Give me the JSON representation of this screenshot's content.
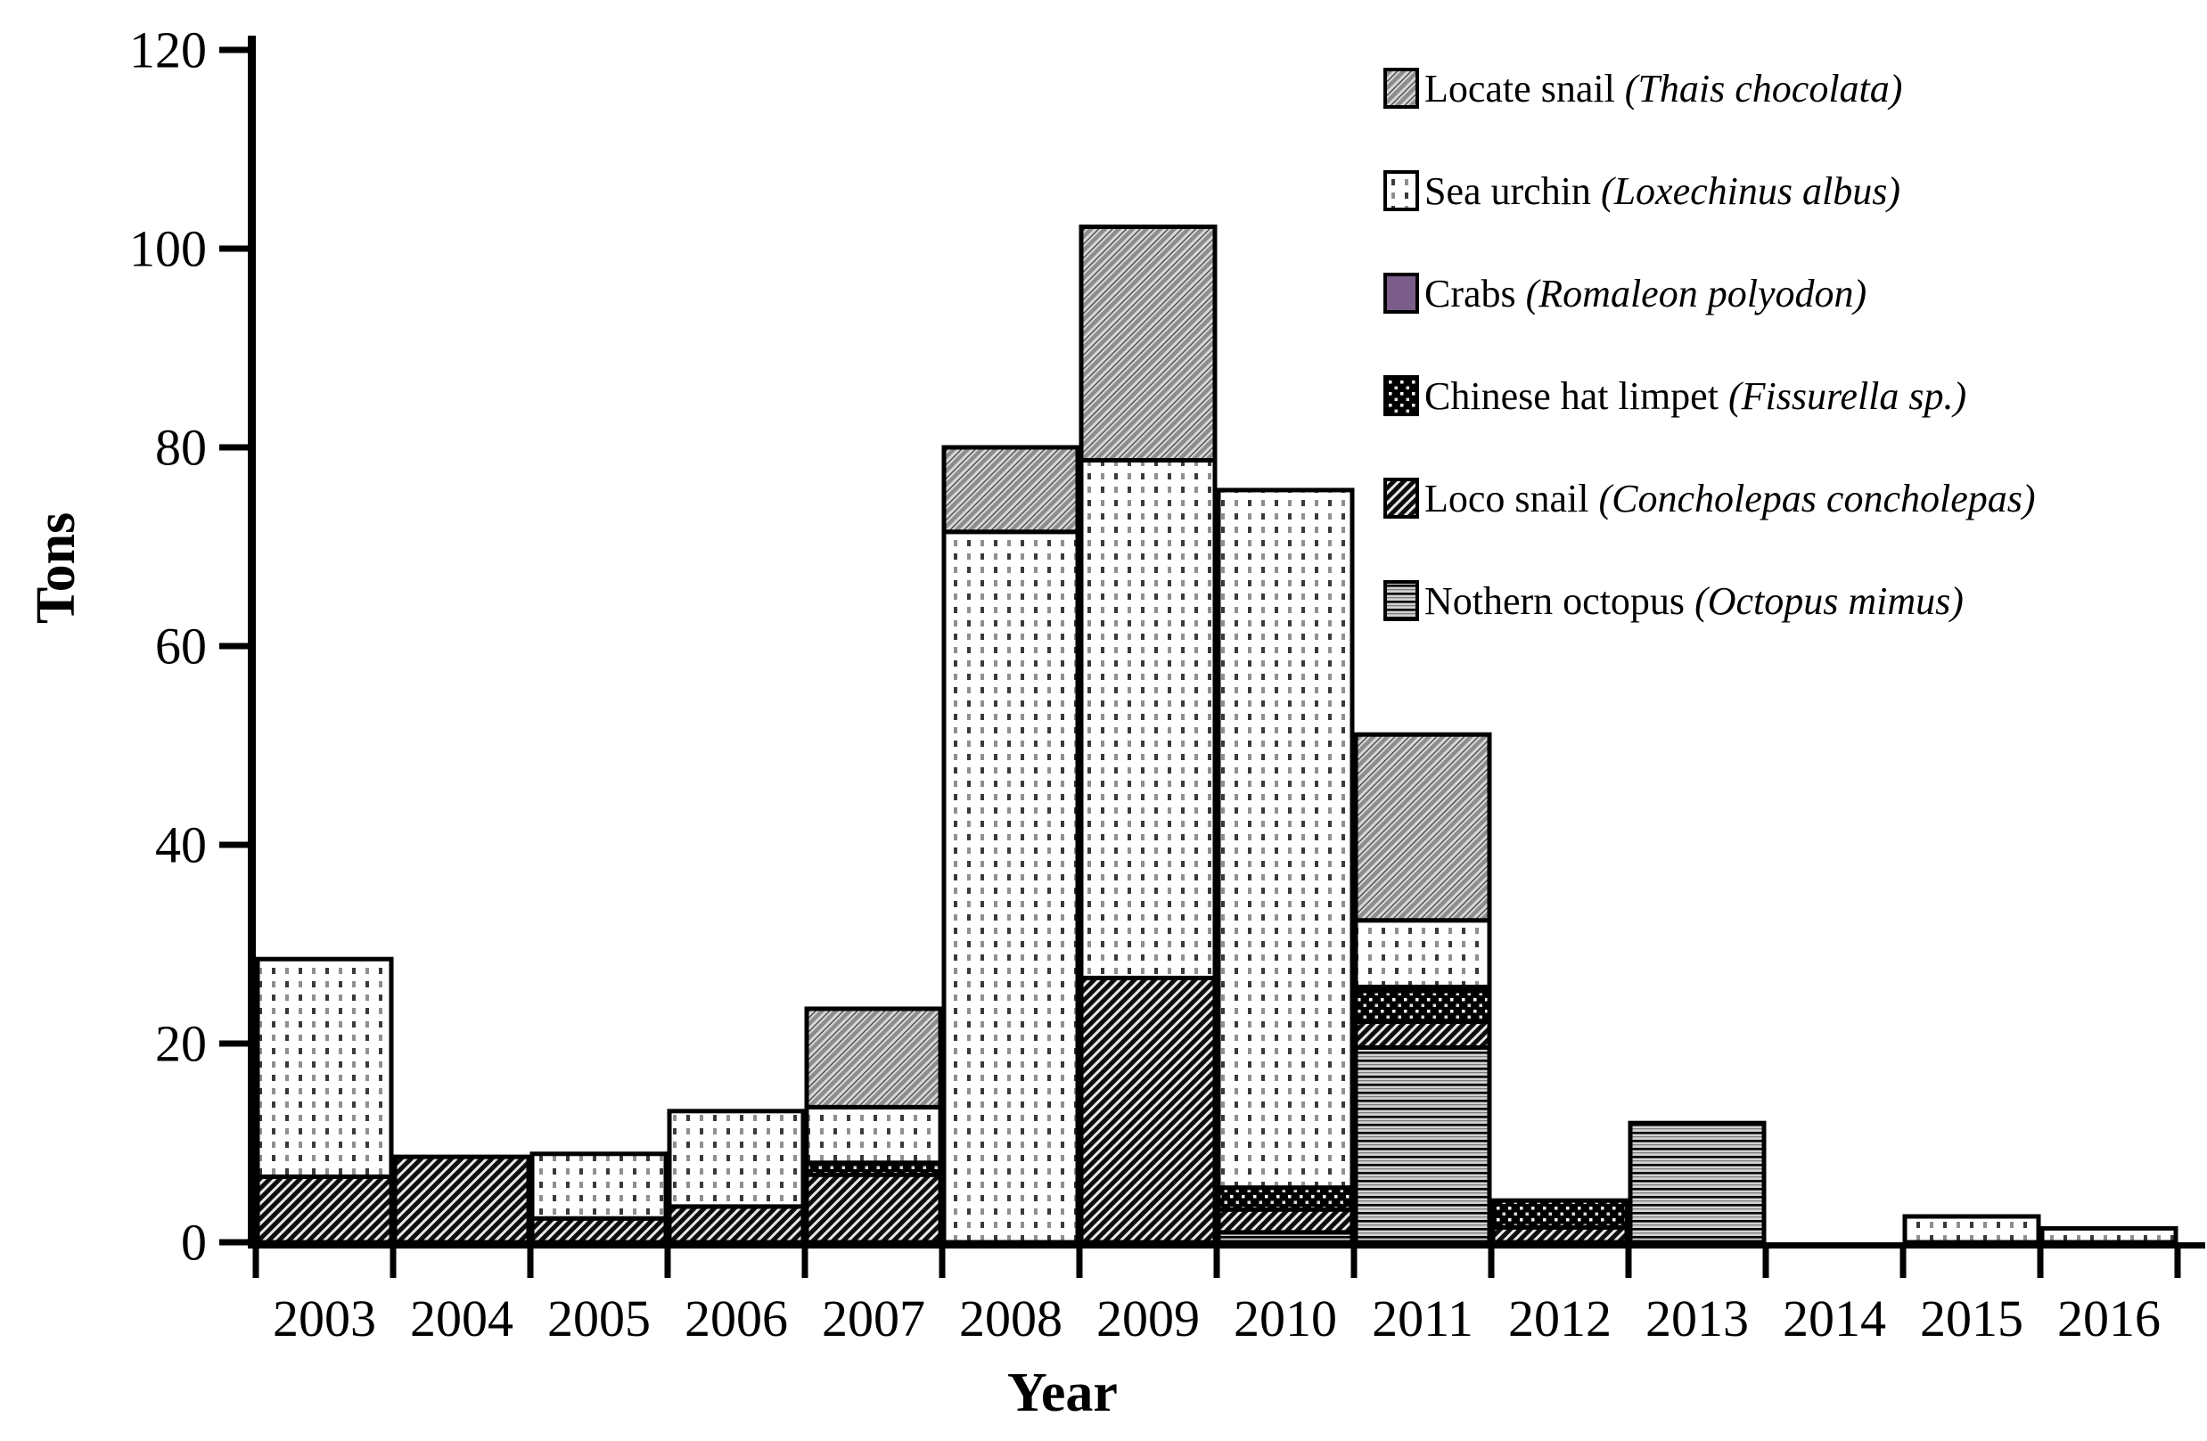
{
  "figure": {
    "background": "#ffffff",
    "axis_color": "#000000",
    "bar_border_color": "#000000",
    "crabs_fill_color": "#7a5d88",
    "ylabel": "Tons",
    "xlabel": "Year"
  },
  "chart_data": {
    "type": "bar",
    "stacked": true,
    "title": "",
    "xlabel": "Year",
    "ylabel": "Tons",
    "ylim": [
      0,
      120
    ],
    "yticks": [
      0,
      20,
      40,
      60,
      80,
      100,
      120
    ],
    "grid": false,
    "legend_position": "top-right",
    "categories": [
      "2003",
      "2004",
      "2005",
      "2006",
      "2007",
      "2008",
      "2009",
      "2010",
      "2011",
      "2012",
      "2013",
      "2014",
      "2015",
      "2016"
    ],
    "series": [
      {
        "name": "Nothern octopus",
        "scientific": "(Octopus mimus)",
        "pattern": "horizontal-lines",
        "values": [
          0,
          0,
          0,
          0,
          0,
          0,
          0,
          1.0,
          19.6,
          0,
          12.0,
          0,
          0,
          0
        ]
      },
      {
        "name": "Loco snail",
        "scientific": "(Concholepas concholepas)",
        "pattern": "dark-diagonal-hatch",
        "values": [
          6.6,
          8.6,
          2.4,
          3.6,
          6.8,
          0,
          26.6,
          2.3,
          2.6,
          1.5,
          0,
          0,
          0,
          0
        ]
      },
      {
        "name": "Chinese hat limpet",
        "scientific": "(Fissurella sp.)",
        "pattern": "white-dots-on-black",
        "values": [
          0,
          0,
          0,
          0,
          1.2,
          0,
          0,
          2.2,
          3.1,
          2.7,
          0,
          0,
          0,
          0
        ]
      },
      {
        "name": "Crabs",
        "scientific": "(Romaleon polyodon)",
        "pattern": "solid-purple",
        "values": [
          0,
          0,
          0,
          0,
          0,
          0,
          0,
          0,
          0.4,
          0,
          0,
          0,
          0,
          0
        ]
      },
      {
        "name": "Sea urchin",
        "scientific": "(Loxechinus albus)",
        "pattern": "dots-on-white",
        "values": [
          21.9,
          0,
          6.5,
          9.6,
          5.6,
          71.5,
          52.1,
          70.2,
          6.7,
          0,
          0,
          0,
          2.6,
          1.4
        ]
      },
      {
        "name": "Locate snail",
        "scientific": "(Thais chocolata)",
        "pattern": "gray-diagonal-hatch",
        "values": [
          0,
          0,
          0,
          0,
          9.9,
          8.5,
          23.5,
          0,
          18.7,
          0,
          0,
          0,
          0,
          0
        ]
      }
    ],
    "legend_order_top_to_bottom": [
      "Locate snail",
      "Sea urchin",
      "Crabs",
      "Chinese hat limpet",
      "Loco snail",
      "Nothern octopus"
    ],
    "totals_by_year": [
      28.5,
      8.6,
      8.9,
      13.2,
      23.5,
      80.0,
      102.2,
      75.7,
      51.1,
      4.2,
      12.0,
      0,
      2.6,
      1.4
    ]
  }
}
